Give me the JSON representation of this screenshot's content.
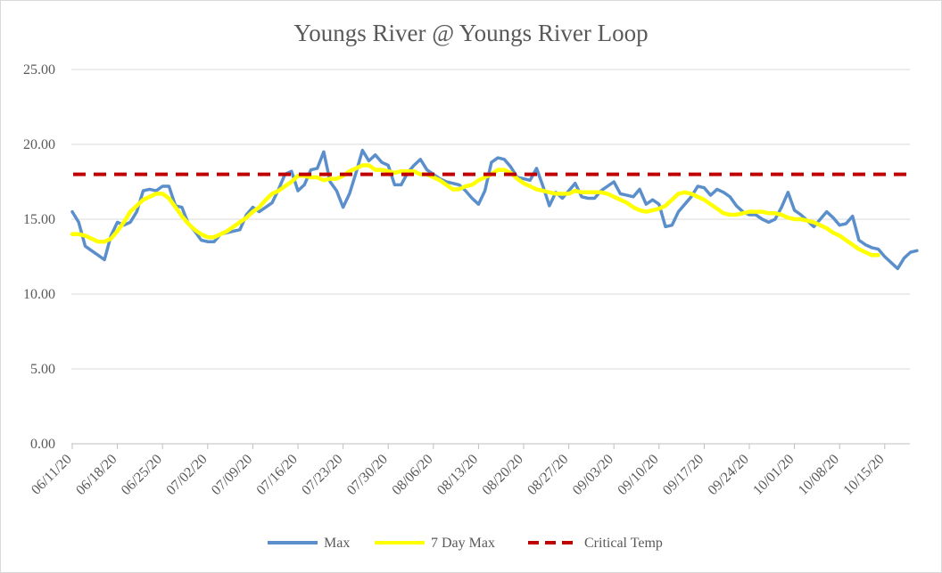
{
  "chart_data": {
    "type": "line",
    "title": "Youngs River @ Youngs River Loop",
    "xlabel": "",
    "ylabel": "",
    "ylim": [
      0,
      25
    ],
    "y_ticks": [
      "0.00",
      "5.00",
      "10.00",
      "15.00",
      "20.00",
      "25.00"
    ],
    "x_ticks": [
      "06/11/20",
      "06/18/20",
      "06/25/20",
      "07/02/20",
      "07/09/20",
      "07/16/20",
      "07/23/20",
      "07/30/20",
      "08/06/20",
      "08/13/20",
      "08/20/20",
      "08/27/20",
      "09/03/20",
      "09/10/20",
      "09/17/20",
      "09/24/20",
      "10/01/20",
      "10/08/20",
      "10/15/20"
    ],
    "x_start": "06/11/20",
    "grid": true,
    "legend_position": "bottom",
    "legend": [
      "Max",
      "7 Day Max",
      "Critical Temp"
    ],
    "series": [
      {
        "name": "Max",
        "color": "#5b8fcb",
        "style": "solid",
        "values": [
          15.5,
          14.8,
          13.2,
          12.9,
          12.6,
          12.3,
          13.9,
          14.8,
          14.6,
          14.8,
          15.5,
          16.9,
          17.0,
          16.9,
          17.2,
          17.2,
          15.9,
          15.8,
          14.7,
          14.2,
          13.6,
          13.5,
          13.5,
          14.0,
          14.1,
          14.2,
          14.3,
          15.3,
          15.8,
          15.5,
          15.8,
          16.1,
          17.0,
          18.0,
          18.2,
          16.9,
          17.3,
          18.3,
          18.4,
          19.5,
          17.5,
          16.9,
          15.8,
          16.7,
          18.1,
          19.6,
          18.9,
          19.3,
          18.8,
          18.6,
          17.3,
          17.3,
          18.1,
          18.6,
          19.0,
          18.3,
          18.0,
          17.7,
          17.5,
          17.4,
          17.3,
          16.9,
          16.4,
          16.0,
          16.9,
          18.8,
          19.1,
          19.0,
          18.5,
          17.8,
          17.7,
          17.6,
          18.4,
          17.2,
          15.9,
          16.8,
          16.4,
          16.9,
          17.4,
          16.5,
          16.4,
          16.4,
          16.9,
          17.2,
          17.5,
          16.7,
          16.6,
          16.5,
          17.0,
          16.0,
          16.3,
          16.0,
          14.5,
          14.6,
          15.5,
          16.0,
          16.5,
          17.2,
          17.1,
          16.6,
          17.0,
          16.8,
          16.5,
          15.9,
          15.5,
          15.3,
          15.3,
          15.0,
          14.8,
          15.0,
          15.8,
          16.8,
          15.6,
          15.3,
          14.9,
          14.5,
          15.0,
          15.5,
          15.1,
          14.6,
          14.7,
          15.2,
          13.6,
          13.3,
          13.1,
          13.0,
          12.5,
          12.1,
          11.7,
          12.4,
          12.8,
          12.9
        ]
      },
      {
        "name": "7 Day Max",
        "color": "#ffff00",
        "style": "solid",
        "values": [
          14.0,
          14.0,
          13.9,
          13.7,
          13.5,
          13.5,
          13.7,
          14.2,
          14.8,
          15.5,
          15.9,
          16.3,
          16.5,
          16.7,
          16.7,
          16.4,
          15.8,
          15.2,
          14.7,
          14.3,
          14.0,
          13.8,
          13.8,
          14.0,
          14.2,
          14.5,
          14.8,
          15.1,
          15.5,
          15.8,
          16.3,
          16.7,
          16.9,
          17.2,
          17.5,
          17.9,
          17.9,
          17.8,
          17.8,
          17.6,
          17.7,
          17.7,
          17.9,
          18.2,
          18.4,
          18.6,
          18.6,
          18.3,
          18.3,
          18.2,
          18.1,
          18.2,
          18.2,
          18.2,
          18.0,
          18.0,
          17.8,
          17.6,
          17.3,
          17.0,
          17.0,
          17.2,
          17.3,
          17.6,
          17.8,
          18.0,
          18.3,
          18.3,
          18.1,
          17.7,
          17.4,
          17.2,
          17.0,
          16.9,
          16.8,
          16.7,
          16.7,
          16.7,
          16.9,
          16.8,
          16.8,
          16.8,
          16.8,
          16.7,
          16.5,
          16.3,
          16.1,
          15.8,
          15.6,
          15.5,
          15.6,
          15.7,
          15.9,
          16.3,
          16.7,
          16.8,
          16.7,
          16.5,
          16.3,
          16.0,
          15.7,
          15.4,
          15.3,
          15.3,
          15.4,
          15.5,
          15.5,
          15.5,
          15.4,
          15.4,
          15.3,
          15.1,
          15.0,
          15.0,
          14.9,
          14.8,
          14.6,
          14.4,
          14.1,
          13.9,
          13.6,
          13.3,
          13.0,
          12.8,
          12.6,
          12.6
        ]
      },
      {
        "name": "Critical Temp",
        "color": "#c00000",
        "style": "dashed",
        "values": [
          18.0,
          18.0
        ]
      }
    ]
  }
}
